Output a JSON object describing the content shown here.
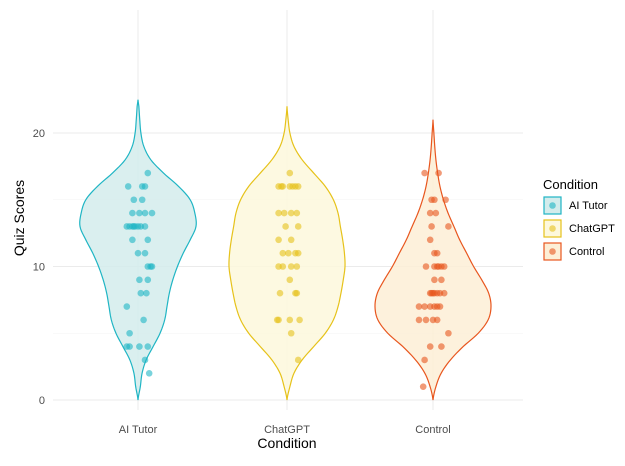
{
  "chart_data": {
    "type": "violin",
    "xlabel": "Condition",
    "ylabel": "Quiz Scores",
    "categories": [
      "AI Tutor",
      "ChatGPT",
      "Control"
    ],
    "ylim": [
      0,
      22.5
    ],
    "yticks": [
      0,
      10,
      20
    ],
    "grid": true,
    "legend": {
      "title": "Condition",
      "position": "right",
      "entries": [
        "AI Tutor",
        "ChatGPT",
        "Control"
      ]
    },
    "series": [
      {
        "name": "AI Tutor",
        "color": "#1fb5c4",
        "fill": "#d3ecec",
        "density_y": [
          0,
          1,
          2,
          3,
          4,
          5,
          6,
          7,
          8,
          9,
          10,
          11,
          12,
          13,
          14,
          15,
          16,
          17,
          18,
          19,
          20,
          21,
          22,
          22.5
        ],
        "density_w": [
          0.0,
          0.04,
          0.07,
          0.14,
          0.26,
          0.38,
          0.46,
          0.5,
          0.54,
          0.6,
          0.68,
          0.78,
          0.9,
          1.0,
          0.98,
          0.9,
          0.7,
          0.44,
          0.22,
          0.1,
          0.05,
          0.03,
          0.015,
          0.0
        ],
        "points": [
          [
            -0.14,
            16
          ],
          [
            0.06,
            16
          ],
          [
            0.1,
            16
          ],
          [
            0.14,
            17
          ],
          [
            -0.06,
            15
          ],
          [
            0.06,
            15
          ],
          [
            -0.08,
            14
          ],
          [
            0.02,
            14
          ],
          [
            0.1,
            14
          ],
          [
            0.2,
            14
          ],
          [
            -0.16,
            13
          ],
          [
            -0.12,
            13
          ],
          [
            -0.08,
            13
          ],
          [
            -0.06,
            13
          ],
          [
            -0.04,
            13
          ],
          [
            0.0,
            13
          ],
          [
            0.04,
            13
          ],
          [
            0.1,
            13
          ],
          [
            0.14,
            12
          ],
          [
            -0.08,
            12
          ],
          [
            0.0,
            11
          ],
          [
            0.1,
            11
          ],
          [
            0.14,
            10
          ],
          [
            0.18,
            10
          ],
          [
            0.2,
            10
          ],
          [
            0.02,
            9
          ],
          [
            0.14,
            9
          ],
          [
            0.04,
            8
          ],
          [
            0.12,
            8
          ],
          [
            -0.16,
            7
          ],
          [
            0.08,
            6
          ],
          [
            -0.12,
            5
          ],
          [
            -0.16,
            4
          ],
          [
            -0.12,
            4
          ],
          [
            0.02,
            4
          ],
          [
            0.14,
            4
          ],
          [
            0.1,
            3
          ],
          [
            0.16,
            2
          ]
        ]
      },
      {
        "name": "ChatGPT",
        "color": "#e6c21a",
        "fill": "#fdf8dc",
        "density_y": [
          0,
          1,
          2,
          3,
          4,
          5,
          6,
          7,
          8,
          9,
          10,
          11,
          12,
          13,
          14,
          15,
          16,
          17,
          18,
          19,
          20,
          21,
          22
        ],
        "density_w": [
          0.0,
          0.05,
          0.12,
          0.26,
          0.46,
          0.66,
          0.8,
          0.88,
          0.93,
          0.97,
          1.0,
          0.99,
          0.96,
          0.92,
          0.88,
          0.8,
          0.66,
          0.46,
          0.26,
          0.12,
          0.05,
          0.02,
          0.0
        ],
        "points": [
          [
            -0.12,
            16
          ],
          [
            -0.08,
            16
          ],
          [
            -0.06,
            16
          ],
          [
            0.04,
            16
          ],
          [
            0.08,
            16
          ],
          [
            0.12,
            16
          ],
          [
            0.16,
            16
          ],
          [
            0.04,
            17
          ],
          [
            -0.12,
            14
          ],
          [
            -0.04,
            14
          ],
          [
            0.06,
            14
          ],
          [
            0.14,
            14
          ],
          [
            -0.02,
            13
          ],
          [
            0.16,
            13
          ],
          [
            -0.12,
            12
          ],
          [
            0.06,
            12
          ],
          [
            -0.06,
            11
          ],
          [
            0.02,
            11
          ],
          [
            0.12,
            11
          ],
          [
            0.16,
            11
          ],
          [
            -0.12,
            10
          ],
          [
            -0.06,
            10
          ],
          [
            0.06,
            10
          ],
          [
            0.14,
            10
          ],
          [
            0.04,
            9
          ],
          [
            -0.1,
            8
          ],
          [
            0.12,
            8
          ],
          [
            0.14,
            8
          ],
          [
            -0.14,
            6
          ],
          [
            -0.12,
            6
          ],
          [
            0.04,
            6
          ],
          [
            0.18,
            6
          ],
          [
            0.06,
            5
          ],
          [
            0.16,
            3
          ]
        ]
      },
      {
        "name": "Control",
        "color": "#e8561e",
        "fill": "#fdefd6",
        "density_y": [
          0,
          1,
          2,
          3,
          4,
          5,
          6,
          7,
          8,
          9,
          10,
          11,
          12,
          13,
          14,
          15,
          16,
          17,
          18,
          19,
          20,
          21
        ],
        "density_w": [
          0.0,
          0.05,
          0.14,
          0.3,
          0.52,
          0.78,
          0.95,
          1.0,
          0.96,
          0.84,
          0.7,
          0.58,
          0.46,
          0.36,
          0.26,
          0.18,
          0.12,
          0.08,
          0.05,
          0.03,
          0.015,
          0.0
        ],
        "points": [
          [
            -0.12,
            17
          ],
          [
            0.08,
            17
          ],
          [
            -0.02,
            15
          ],
          [
            0.02,
            15
          ],
          [
            0.18,
            15
          ],
          [
            -0.04,
            14
          ],
          [
            0.04,
            14
          ],
          [
            -0.02,
            13
          ],
          [
            0.22,
            13
          ],
          [
            -0.04,
            12
          ],
          [
            0.02,
            11
          ],
          [
            0.06,
            11
          ],
          [
            -0.1,
            10
          ],
          [
            0.02,
            10
          ],
          [
            0.06,
            10
          ],
          [
            0.08,
            10
          ],
          [
            0.12,
            10
          ],
          [
            0.16,
            10
          ],
          [
            0.02,
            9
          ],
          [
            0.12,
            9
          ],
          [
            -0.04,
            8
          ],
          [
            -0.02,
            8
          ],
          [
            0.0,
            8
          ],
          [
            0.02,
            8
          ],
          [
            0.06,
            8
          ],
          [
            0.1,
            8
          ],
          [
            0.16,
            8
          ],
          [
            -0.2,
            7
          ],
          [
            -0.12,
            7
          ],
          [
            -0.04,
            7
          ],
          [
            0.02,
            7
          ],
          [
            0.06,
            7
          ],
          [
            0.1,
            7
          ],
          [
            -0.2,
            6
          ],
          [
            -0.1,
            6
          ],
          [
            0.0,
            6
          ],
          [
            0.06,
            6
          ],
          [
            0.22,
            5
          ],
          [
            -0.04,
            4
          ],
          [
            0.12,
            4
          ],
          [
            -0.12,
            3
          ],
          [
            -0.14,
            1
          ]
        ]
      }
    ]
  }
}
